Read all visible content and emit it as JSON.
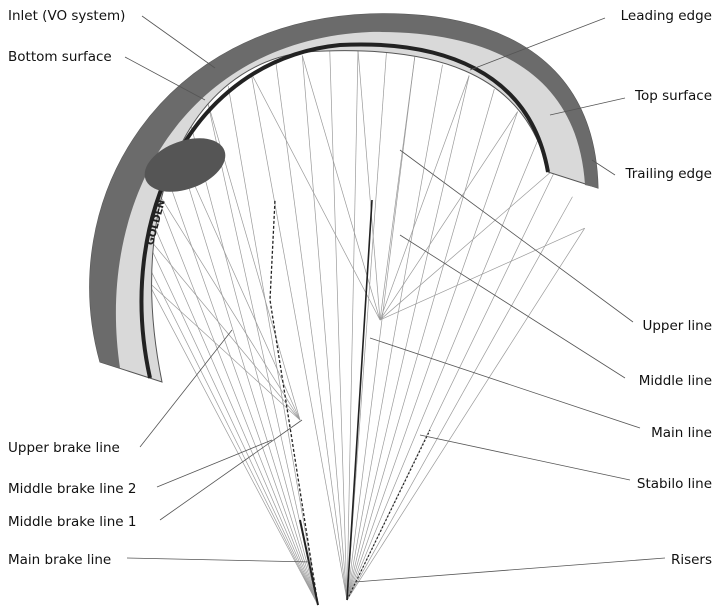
{
  "wing_logo": "GOLDEN",
  "labels": {
    "inlet": "Inlet (VO system)",
    "bottom_surface": "Bottom surface",
    "leading_edge": "Leading edge",
    "top_surface": "Top surface",
    "trailing_edge": "Trailing edge",
    "upper_line": "Upper line",
    "middle_line": "Middle line",
    "main_line": "Main line",
    "stabilo_line": "Stabilo line",
    "upper_brake_line": "Upper brake line",
    "middle_brake_line_2": "Middle brake line 2",
    "middle_brake_line_1": "Middle brake line 1",
    "main_brake_line": "Main brake line",
    "risers": "Risers"
  }
}
